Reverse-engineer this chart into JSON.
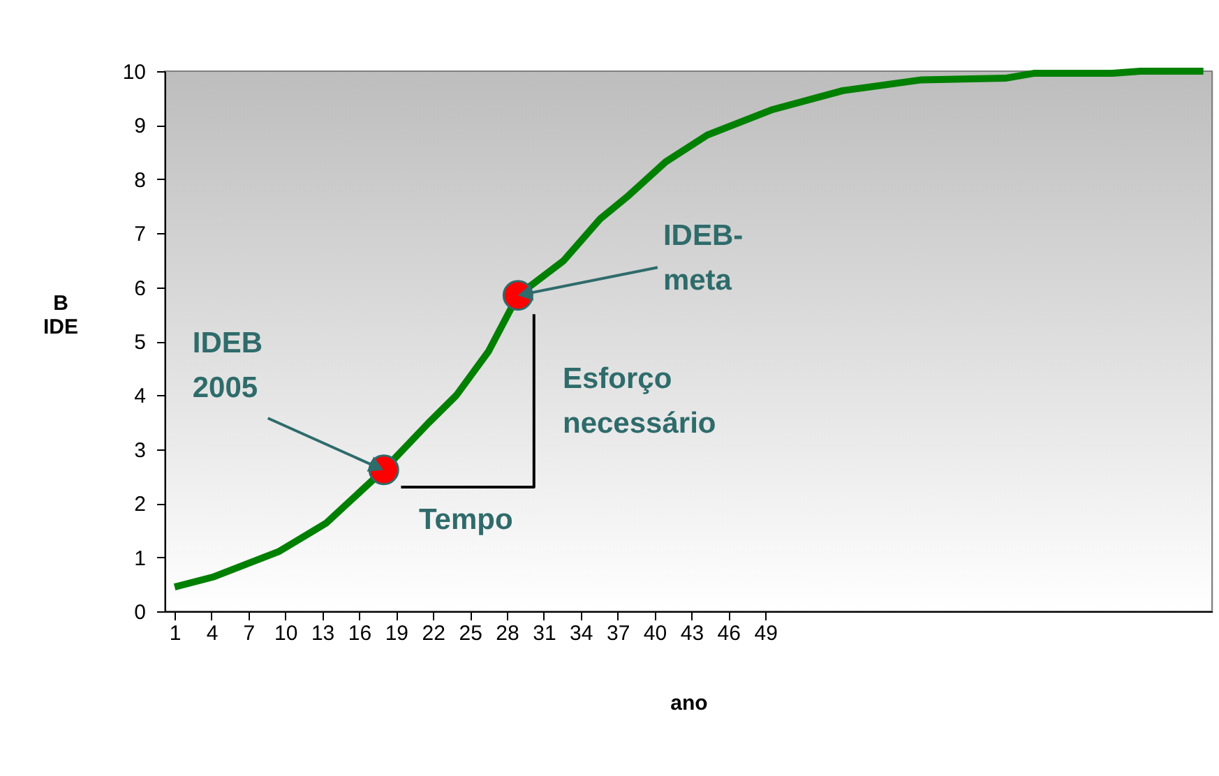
{
  "chart_data": {
    "type": "line",
    "xlabel": "ano",
    "ylabel": "B IDE",
    "xlim": [
      0.2,
      85.3
    ],
    "xticks": [
      1,
      4,
      7,
      10,
      13,
      16,
      19,
      22,
      25,
      28,
      31,
      34,
      37,
      40,
      43,
      46,
      49
    ],
    "ylim": [
      0,
      10
    ],
    "yticks": [
      0,
      1,
      2,
      3,
      4,
      5,
      6,
      7,
      8,
      9,
      10
    ],
    "grid": false,
    "series": [
      {
        "color": "#008000",
        "marker": "none",
        "x": [
          1,
          4.2,
          9.5,
          13.3,
          18,
          21.6,
          23.9,
          26.5,
          28.9,
          32.6,
          35.6,
          37.9,
          40.9,
          44.3,
          49.6,
          55.3,
          61.7,
          68.5,
          70.8,
          77.2,
          79.5,
          84.6
        ],
        "values": [
          0.45,
          0.64,
          1.11,
          1.63,
          2.62,
          3.48,
          4.0,
          4.81,
          5.85,
          6.49,
          7.27,
          7.7,
          8.32,
          8.82,
          9.29,
          9.64,
          9.84,
          9.87,
          9.96,
          9.96,
          10.0,
          10.0
        ]
      },
      {
        "type": "scatter",
        "color": "#ff0000",
        "marker": "circle",
        "x": [
          18,
          28.9
        ],
        "values": [
          2.62,
          5.85
        ]
      },
      {
        "color": "#000000",
        "marker": "none",
        "x": [
          19.4,
          30.2,
          30.2
        ],
        "values": [
          2.3,
          2.3,
          5.5
        ]
      }
    ],
    "annotations": [
      {
        "text": "IDEB 2005",
        "x": 18,
        "y": 2.62
      },
      {
        "text": "IDEB-meta",
        "x": 28.9,
        "y": 5.85
      },
      "Tempo",
      "Esforço necessário"
    ]
  }
}
